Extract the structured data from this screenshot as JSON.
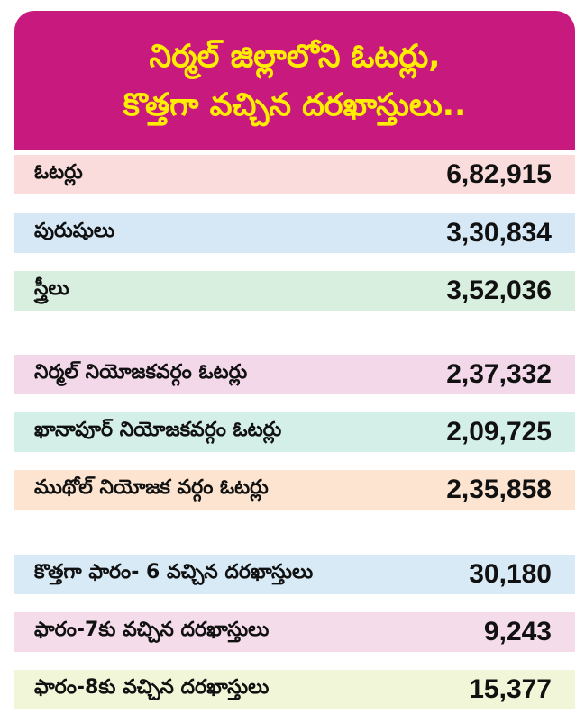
{
  "header": {
    "title_line1": "నిర్మల్ జిల్లాలోని ఓటర్లు,",
    "title_line2": "కొత్తగా వచ్చిన దరఖాస్తులు.."
  },
  "colors": {
    "header_bg": "#c8197f",
    "header_text": "#ffee00",
    "row_pink": "#fbdcdc",
    "row_blue": "#d6e8f5",
    "row_green": "#d8efe0",
    "row_lavender": "#f3d8ea",
    "row_mint": "#d4efe8",
    "row_peach": "#fce4d0",
    "row_lightblue": "#d9eaf7",
    "row_lightpink": "#f5dcea",
    "row_lightyellow": "#f1f6d8"
  },
  "chart_data": {
    "type": "table",
    "title": "నిర్మల్ జిల్లాలోని ఓటర్లు, కొత్తగా వచ్చిన దరఖాస్తులు..",
    "rows": [
      {
        "label": "ఓటర్లు",
        "value": "6,82,915"
      },
      {
        "label": "పురుషులు",
        "value": "3,30,834"
      },
      {
        "label": "స్త్రీలు",
        "value": "3,52,036"
      },
      {
        "label": "నిర్మల్ నియోజకవర్గం ఓటర్లు",
        "value": "2,37,332"
      },
      {
        "label": "ఖానాపూర్ నియోజకవర్గం ఓటర్లు",
        "value": "2,09,725"
      },
      {
        "label": "ముథోల్ నియోజక వర్గం ఓటర్లు",
        "value": "2,35,858"
      },
      {
        "label": "కొత్తగా ఫారం- 6 వచ్చిన దరఖాస్తులు",
        "value": "30,180"
      },
      {
        "label": "ఫారం-7కు వచ్చిన దరఖాస్తులు",
        "value": "9,243"
      },
      {
        "label": "ఫారం-8కు వచ్చిన దరఖాస్తులు",
        "value": "15,377"
      }
    ]
  }
}
